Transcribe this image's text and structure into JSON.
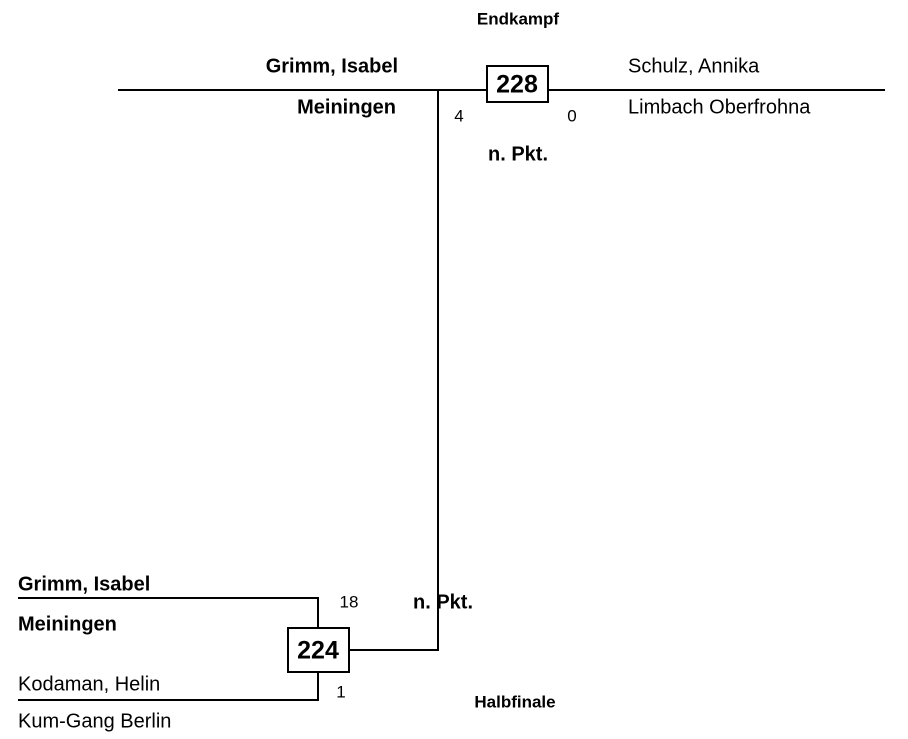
{
  "final": {
    "title": "Endkampf",
    "match_number": 228,
    "result_note": "n. Pkt.",
    "player1": {
      "name": "Grimm, Isabel",
      "club": "Meiningen",
      "score": 4
    },
    "player2": {
      "name": "Schulz, Annika",
      "club": "Limbach Oberfrohna",
      "score": 0
    }
  },
  "semifinal": {
    "title": "Halbfinale",
    "match_number": 224,
    "result_note": "n. Pkt.",
    "player1": {
      "name": "Grimm, Isabel",
      "club": "Meiningen",
      "score": 18
    },
    "player2": {
      "name": "Kodaman, Helin",
      "club": "Kum-Gang Berlin",
      "score": 1
    }
  }
}
